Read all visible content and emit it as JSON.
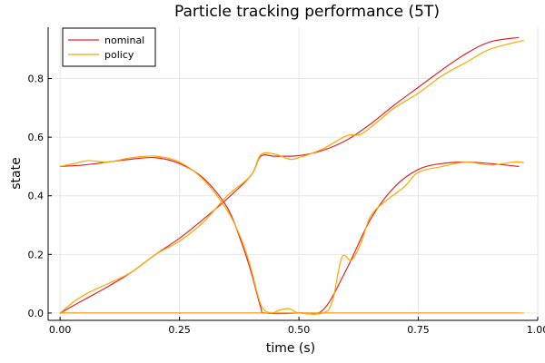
{
  "chart_data": {
    "type": "line",
    "title": "Particle tracking performance (5T)",
    "xlabel": "time (s)",
    "ylabel": "state",
    "xlim": [
      -0.025,
      1.0
    ],
    "ylim": [
      -0.025,
      0.975
    ],
    "xticks": [
      0.0,
      0.25,
      0.5,
      0.75,
      1.0
    ],
    "xtick_labels": [
      "0.00",
      "0.25",
      "0.50",
      "0.75",
      "1.00"
    ],
    "yticks": [
      0.0,
      0.2,
      0.4,
      0.6,
      0.8
    ],
    "ytick_labels": [
      "0.0",
      "0.2",
      "0.4",
      "0.6",
      "0.8"
    ],
    "grid": true,
    "legend_position": "top-left",
    "legend": [
      {
        "name": "nominal",
        "color": "#e2252a"
      },
      {
        "name": "policy",
        "color": "#ffa500"
      }
    ],
    "series": [
      {
        "name": "nominal",
        "color": "#e2252a",
        "show_in_legend": true,
        "x": [
          0.0,
          0.05,
          0.1,
          0.15,
          0.2,
          0.25,
          0.3,
          0.35,
          0.4,
          0.42,
          0.45,
          0.5,
          0.55,
          0.6,
          0.65,
          0.7,
          0.75,
          0.8,
          0.85,
          0.9,
          0.96
        ],
        "y": [
          0.0,
          0.045,
          0.09,
          0.14,
          0.2,
          0.255,
          0.32,
          0.39,
          0.47,
          0.535,
          0.535,
          0.537,
          0.555,
          0.59,
          0.645,
          0.71,
          0.77,
          0.83,
          0.885,
          0.925,
          0.94
        ]
      },
      {
        "name": "nominal",
        "color": "#e2252a",
        "show_in_legend": false,
        "x": [
          0.0,
          0.05,
          0.1,
          0.15,
          0.2,
          0.25,
          0.3,
          0.35,
          0.38,
          0.4,
          0.42,
          0.43,
          0.5,
          0.55,
          0.6,
          0.65,
          0.7,
          0.75,
          0.8,
          0.85,
          0.9,
          0.96
        ],
        "y": [
          0.5,
          0.505,
          0.515,
          0.525,
          0.53,
          0.51,
          0.46,
          0.36,
          0.24,
          0.14,
          0.02,
          0.0,
          0.0,
          0.01,
          0.15,
          0.32,
          0.43,
          0.49,
          0.51,
          0.515,
          0.51,
          0.5
        ]
      },
      {
        "name": "nominal",
        "color": "#e2252a",
        "show_in_legend": false,
        "x": [
          0.0,
          0.25,
          0.5,
          0.75,
          0.96
        ],
        "y": [
          0.0,
          0.0,
          0.0,
          0.0,
          0.0
        ]
      },
      {
        "name": "policy",
        "color": "#ffa500",
        "show_in_legend": true,
        "x": [
          0.0,
          0.03,
          0.06,
          0.1,
          0.15,
          0.2,
          0.25,
          0.3,
          0.35,
          0.4,
          0.42,
          0.45,
          0.48,
          0.5,
          0.55,
          0.6,
          0.63,
          0.67,
          0.7,
          0.75,
          0.8,
          0.85,
          0.9,
          0.97
        ],
        "y": [
          0.0,
          0.04,
          0.07,
          0.1,
          0.14,
          0.2,
          0.245,
          0.31,
          0.4,
          0.47,
          0.54,
          0.542,
          0.525,
          0.53,
          0.56,
          0.605,
          0.61,
          0.66,
          0.7,
          0.75,
          0.81,
          0.855,
          0.9,
          0.93
        ]
      },
      {
        "name": "policy",
        "color": "#ffa500",
        "show_in_legend": false,
        "x": [
          0.0,
          0.03,
          0.06,
          0.1,
          0.15,
          0.2,
          0.25,
          0.3,
          0.35,
          0.38,
          0.4,
          0.42,
          0.44,
          0.46,
          0.48,
          0.5,
          0.55,
          0.57,
          0.59,
          0.61,
          0.63,
          0.65,
          0.68,
          0.72,
          0.75,
          0.8,
          0.85,
          0.9,
          0.95,
          0.97
        ],
        "y": [
          0.5,
          0.51,
          0.52,
          0.515,
          0.53,
          0.535,
          0.515,
          0.455,
          0.35,
          0.25,
          0.15,
          0.03,
          0.0,
          0.01,
          0.015,
          0.0,
          0.0,
          0.04,
          0.19,
          0.18,
          0.24,
          0.33,
          0.38,
          0.43,
          0.48,
          0.5,
          0.515,
          0.505,
          0.515,
          0.513
        ]
      },
      {
        "name": "policy",
        "color": "#ffa500",
        "show_in_legend": false,
        "x": [
          0.0,
          0.25,
          0.5,
          0.75,
          0.97
        ],
        "y": [
          0.0,
          0.0,
          0.0,
          0.0,
          0.0
        ]
      }
    ]
  }
}
